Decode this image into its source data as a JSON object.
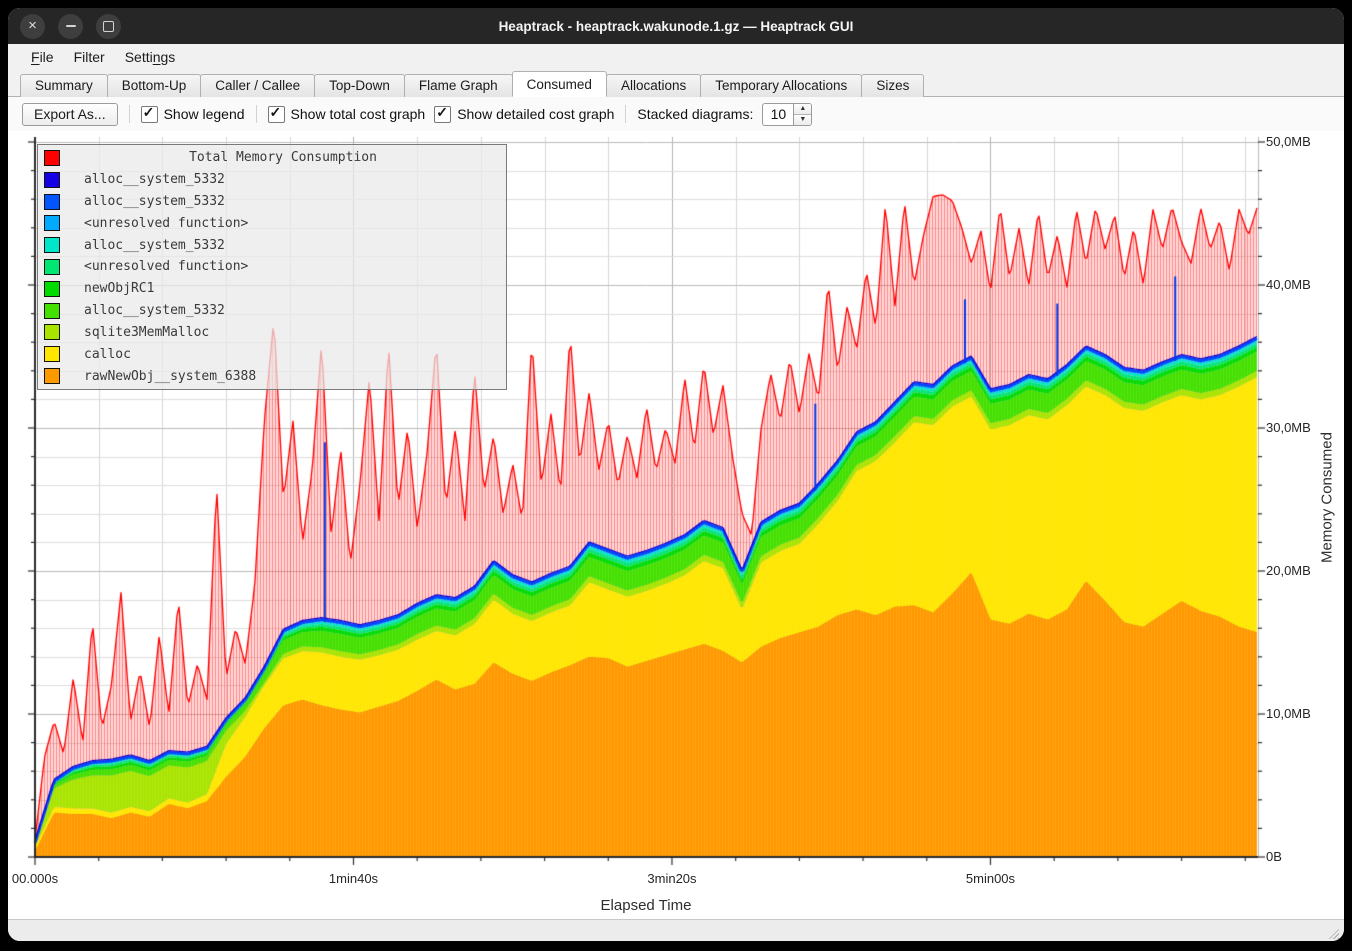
{
  "window": {
    "title": "Heaptrack - heaptrack.wakunode.1.gz — Heaptrack GUI",
    "controls": [
      {
        "name": "close"
      },
      {
        "name": "minimize"
      },
      {
        "name": "maximize"
      }
    ]
  },
  "menu": {
    "items": [
      {
        "label": "File",
        "underline_index": 0
      },
      {
        "label": "Filter",
        "underline_index": null
      },
      {
        "label": "Settings",
        "underline_index": 5
      }
    ]
  },
  "tabs": {
    "active": "Consumed",
    "items": [
      "Summary",
      "Bottom-Up",
      "Caller / Callee",
      "Top-Down",
      "Flame Graph",
      "Consumed",
      "Allocations",
      "Temporary Allocations",
      "Sizes"
    ]
  },
  "toolbar": {
    "export_label": "Export As...",
    "checkboxes": [
      {
        "label": "Show legend",
        "checked": true
      },
      {
        "label": "Show total cost graph",
        "checked": true
      },
      {
        "label": "Show detailed cost graph",
        "checked": true
      }
    ],
    "stacked_label": "Stacked diagrams:",
    "stacked_value": "10"
  },
  "chart_data": {
    "type": "area",
    "stacked": true,
    "title": "Total Memory Consumption",
    "xlabel": "Elapsed Time",
    "ylabel": "Memory Consumed",
    "x_unit": "seconds",
    "x_range_s": [
      0,
      384
    ],
    "ylim_MB": [
      0,
      50
    ],
    "grid": {
      "x_step_s": 20,
      "y_step_MB": 2,
      "x_major_s": 100,
      "y_major_MB": 10
    },
    "x_ticks": [
      {
        "s": 0,
        "label": "00.000s"
      },
      {
        "s": 100,
        "label": "1min40s"
      },
      {
        "s": 200,
        "label": "3min20s"
      },
      {
        "s": 300,
        "label": "5min00s"
      }
    ],
    "y_ticks": [
      {
        "MB": 0,
        "label": "0B"
      },
      {
        "MB": 10,
        "label": "10,0MB"
      },
      {
        "MB": 20,
        "label": "20,0MB"
      },
      {
        "MB": 30,
        "label": "30,0MB"
      },
      {
        "MB": 40,
        "label": "40,0MB"
      },
      {
        "MB": 50,
        "label": "50,0MB"
      }
    ],
    "legend": [
      {
        "label": "Total Memory Consumption",
        "color": "#ff0000",
        "role": "total"
      },
      {
        "label": "alloc__system_5332",
        "color": "#1500e6"
      },
      {
        "label": "alloc__system_5332",
        "color": "#0055ff"
      },
      {
        "label": "<unresolved function>",
        "color": "#00aaff"
      },
      {
        "label": "alloc__system_5332",
        "color": "#00e6c8"
      },
      {
        "label": "<unresolved function>",
        "color": "#00e673"
      },
      {
        "label": "newObjRC1",
        "color": "#00dc00"
      },
      {
        "label": "alloc__system_5332",
        "color": "#44e000"
      },
      {
        "label": "sqlite3MemMalloc",
        "color": "#a8e400"
      },
      {
        "label": "calloc",
        "color": "#ffe600"
      },
      {
        "label": "rawNewObj__system_6388",
        "color": "#ff9900"
      }
    ],
    "sampling": {
      "stack_step_s": 6,
      "total_step_s": 3
    },
    "stack_tops_MB": {
      "rawNewObj__system_6388": [
        0.4,
        3.1,
        3.0,
        3.0,
        2.7,
        3.1,
        2.8,
        3.7,
        3.4,
        3.9,
        5.6,
        7.0,
        9.0,
        10.6,
        11.0,
        10.6,
        10.3,
        10.1,
        10.5,
        10.9,
        11.6,
        12.4,
        11.7,
        12.1,
        13.6,
        12.8,
        12.3,
        12.9,
        13.4,
        14.0,
        13.9,
        13.3,
        13.7,
        14.1,
        14.5,
        14.9,
        14.4,
        13.6,
        14.7,
        15.3,
        15.7,
        16.1,
        16.9,
        17.3,
        16.9,
        17.5,
        17.6,
        17.1,
        18.4,
        19.9,
        16.6,
        16.3,
        17.0,
        16.6,
        17.3,
        19.3,
        17.9,
        16.4,
        16.1,
        17.0,
        17.9,
        17.2,
        16.8,
        16.1,
        15.7
      ],
      "calloc": [
        0.7,
        3.5,
        3.4,
        3.4,
        3.1,
        3.5,
        3.2,
        4.1,
        3.8,
        4.4,
        7.9,
        9.8,
        12.0,
        13.9,
        14.4,
        14.3,
        14.0,
        13.8,
        14.1,
        14.5,
        15.2,
        15.8,
        15.5,
        16.3,
        18.0,
        17.0,
        16.5,
        17.1,
        17.6,
        19.2,
        18.7,
        18.2,
        18.6,
        19.1,
        19.7,
        20.7,
        20.2,
        17.3,
        20.6,
        21.4,
        21.9,
        23.3,
        24.9,
        27.0,
        27.7,
        29.0,
        30.4,
        30.2,
        31.5,
        32.2,
        29.9,
        30.2,
        30.9,
        30.6,
        31.6,
        32.9,
        32.3,
        31.4,
        31.2,
        31.8,
        32.3,
        32.0,
        32.3,
        32.9,
        33.6
      ],
      "all_layers": [
        1.0,
        5.3,
        6.2,
        6.6,
        6.7,
        7.0,
        6.6,
        7.3,
        7.2,
        7.6,
        9.6,
        11.0,
        13.2,
        15.8,
        16.4,
        16.6,
        16.4,
        16.1,
        16.4,
        16.8,
        17.6,
        18.2,
        18.0,
        18.8,
        20.6,
        19.6,
        19.1,
        19.7,
        20.2,
        21.9,
        21.4,
        20.9,
        21.3,
        21.8,
        22.4,
        23.4,
        22.9,
        19.9,
        23.3,
        24.1,
        24.6,
        26.0,
        27.6,
        29.6,
        30.3,
        31.7,
        33.1,
        32.9,
        34.2,
        34.9,
        32.6,
        32.9,
        33.6,
        33.3,
        34.3,
        35.6,
        35.0,
        34.1,
        33.9,
        34.5,
        35.0,
        34.7,
        35.0,
        35.6,
        36.3
      ]
    },
    "band_fractions_of_gap": {
      "order": [
        "sqlite3MemMalloc",
        "alloc__system_5332",
        "newObjRC1",
        "unresolved_green",
        "alloc_cyan",
        "unresolved_azure"
      ],
      "early": [
        0.72,
        0.12,
        0.06,
        0.045,
        0.03,
        0.025
      ],
      "late": [
        0.16,
        0.5,
        0.12,
        0.09,
        0.07,
        0.06
      ],
      "blend_start_s": 55,
      "blend_end_s": 72
    },
    "stack_spikes_MB": [
      [
        91,
        29.0
      ],
      [
        245,
        31.7
      ],
      [
        292,
        39.0
      ],
      [
        321,
        38.7
      ],
      [
        358,
        40.6
      ]
    ],
    "total_MB": [
      1.2,
      7.0,
      9.5,
      7.2,
      12.5,
      8.0,
      16.5,
      9.0,
      12.0,
      18.5,
      9.5,
      13.0,
      9.0,
      15.5,
      10.0,
      18.0,
      10.5,
      13.5,
      11.0,
      26.0,
      12.5,
      16.0,
      13.5,
      19.0,
      30.5,
      37.6,
      25.0,
      30.5,
      22.0,
      27.0,
      36.0,
      22.5,
      28.5,
      20.5,
      26.0,
      33.5,
      23.5,
      35.8,
      24.5,
      30.0,
      23.0,
      28.0,
      36.0,
      24.5,
      30.0,
      23.5,
      34.0,
      25.5,
      29.5,
      24.0,
      27.5,
      23.5,
      36.2,
      26.0,
      31.0,
      25.5,
      36.6,
      27.5,
      32.5,
      27.0,
      30.5,
      26.0,
      29.5,
      26.5,
      31.5,
      27.0,
      30.0,
      27.5,
      33.5,
      28.5,
      34.5,
      29.5,
      33.0,
      28.0,
      24.0,
      22.5,
      30.0,
      33.8,
      30.5,
      34.8,
      31.0,
      35.2,
      32.0,
      40.2,
      34.0,
      38.5,
      35.5,
      41.0,
      37.0,
      45.6,
      38.5,
      45.8,
      40.0,
      43.5,
      46.2,
      46.3,
      45.9,
      44.0,
      41.5,
      43.8,
      39.5,
      45.5,
      40.5,
      44.0,
      39.9,
      45.2,
      40.5,
      43.5,
      39.8,
      45.3,
      41.5,
      45.4,
      42.5,
      44.9,
      40.5,
      44.0,
      40.0,
      45.3,
      42.5,
      45.5,
      43.0,
      41.5,
      45.4,
      42.5,
      44.5,
      41.0,
      45.3,
      43.5,
      45.6
    ]
  }
}
